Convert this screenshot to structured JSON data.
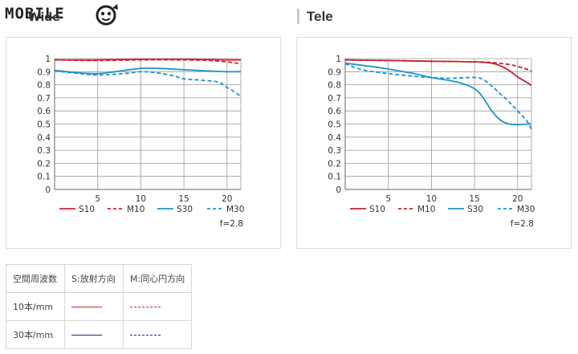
{
  "page": {
    "logo_text": "MOBILE",
    "wide_title": "Wide",
    "tele_title": "Tele",
    "fnumber": "f=2.8"
  },
  "legend_table": {
    "header": [
      "空間周波数",
      "S:放射方向",
      "M:同心円方向"
    ],
    "rows": [
      {
        "label": "10本/mm",
        "s_color": "#d7222b",
        "m_color": "#d7222b"
      },
      {
        "label": "30本/mm",
        "s_color": "#1a2c8a",
        "m_color": "#1a2c8a"
      }
    ]
  },
  "chart_data": [
    {
      "type": "line",
      "title": "",
      "xlabel": "",
      "ylabel": "",
      "xlim": [
        0,
        21.6
      ],
      "ylim": [
        0,
        1
      ],
      "xticks": [
        "5",
        "10",
        "15",
        "20"
      ],
      "yticks": [
        "0",
        "0.1",
        "0.2",
        "0.3",
        "0.4",
        "0.5",
        "0.6",
        "0.7",
        "0.8",
        "0.9",
        "1"
      ],
      "grid": true,
      "legend_position": "bottom",
      "series": [
        {
          "name": "S10",
          "color": "#d7222b",
          "dash": false,
          "x": [
            0,
            5,
            10,
            15,
            20,
            21.6
          ],
          "y": [
            0.99,
            0.99,
            0.995,
            0.995,
            0.99,
            0.99
          ]
        },
        {
          "name": "M10",
          "color": "#d7222b",
          "dash": true,
          "x": [
            0,
            5,
            10,
            15,
            18,
            20,
            21.6
          ],
          "y": [
            0.99,
            0.985,
            0.99,
            0.99,
            0.985,
            0.975,
            0.96
          ]
        },
        {
          "name": "S30",
          "color": "#1f93cf",
          "dash": false,
          "x": [
            0,
            3,
            5,
            7,
            10,
            12,
            15,
            18,
            20,
            21.6
          ],
          "y": [
            0.91,
            0.89,
            0.885,
            0.9,
            0.925,
            0.925,
            0.915,
            0.905,
            0.9,
            0.9
          ]
        },
        {
          "name": "M30",
          "color": "#1f93cf",
          "dash": true,
          "x": [
            0,
            3,
            5,
            8,
            10,
            12,
            14,
            15,
            17,
            19,
            20,
            21,
            21.6
          ],
          "y": [
            0.905,
            0.885,
            0.875,
            0.885,
            0.9,
            0.89,
            0.865,
            0.845,
            0.835,
            0.82,
            0.78,
            0.74,
            0.71
          ]
        }
      ]
    },
    {
      "type": "line",
      "title": "",
      "xlabel": "",
      "ylabel": "",
      "xlim": [
        0,
        21.6
      ],
      "ylim": [
        0,
        1
      ],
      "xticks": [
        "5",
        "10",
        "15",
        "20"
      ],
      "yticks": [
        "0",
        "0.1",
        "0.2",
        "0.3",
        "0.4",
        "0.5",
        "0.6",
        "0.7",
        "0.8",
        "0.9",
        "1"
      ],
      "grid": true,
      "legend_position": "bottom",
      "series": [
        {
          "name": "S10",
          "color": "#c0272d",
          "dash": false,
          "x": [
            0,
            5,
            10,
            15,
            17,
            18,
            19,
            20,
            21,
            21.6
          ],
          "y": [
            0.99,
            0.985,
            0.98,
            0.975,
            0.965,
            0.945,
            0.91,
            0.86,
            0.82,
            0.795
          ]
        },
        {
          "name": "M10",
          "color": "#c0272d",
          "dash": true,
          "x": [
            0,
            5,
            10,
            15,
            17,
            19,
            20,
            21,
            21.6
          ],
          "y": [
            0.99,
            0.985,
            0.98,
            0.975,
            0.97,
            0.955,
            0.94,
            0.92,
            0.905
          ]
        },
        {
          "name": "S30",
          "color": "#1f93cf",
          "dash": false,
          "x": [
            0,
            3,
            5,
            8,
            10,
            13,
            15,
            16,
            17,
            18,
            19,
            20,
            21,
            21.6
          ],
          "y": [
            0.965,
            0.94,
            0.92,
            0.885,
            0.855,
            0.82,
            0.77,
            0.7,
            0.6,
            0.53,
            0.5,
            0.495,
            0.5,
            0.5
          ]
        },
        {
          "name": "M30",
          "color": "#1f93cf",
          "dash": true,
          "x": [
            0,
            2,
            5,
            8,
            10,
            12,
            15,
            16,
            17,
            18,
            19,
            20,
            21,
            21.6
          ],
          "y": [
            0.96,
            0.915,
            0.885,
            0.865,
            0.855,
            0.85,
            0.855,
            0.84,
            0.79,
            0.73,
            0.67,
            0.6,
            0.53,
            0.46
          ]
        }
      ]
    }
  ]
}
